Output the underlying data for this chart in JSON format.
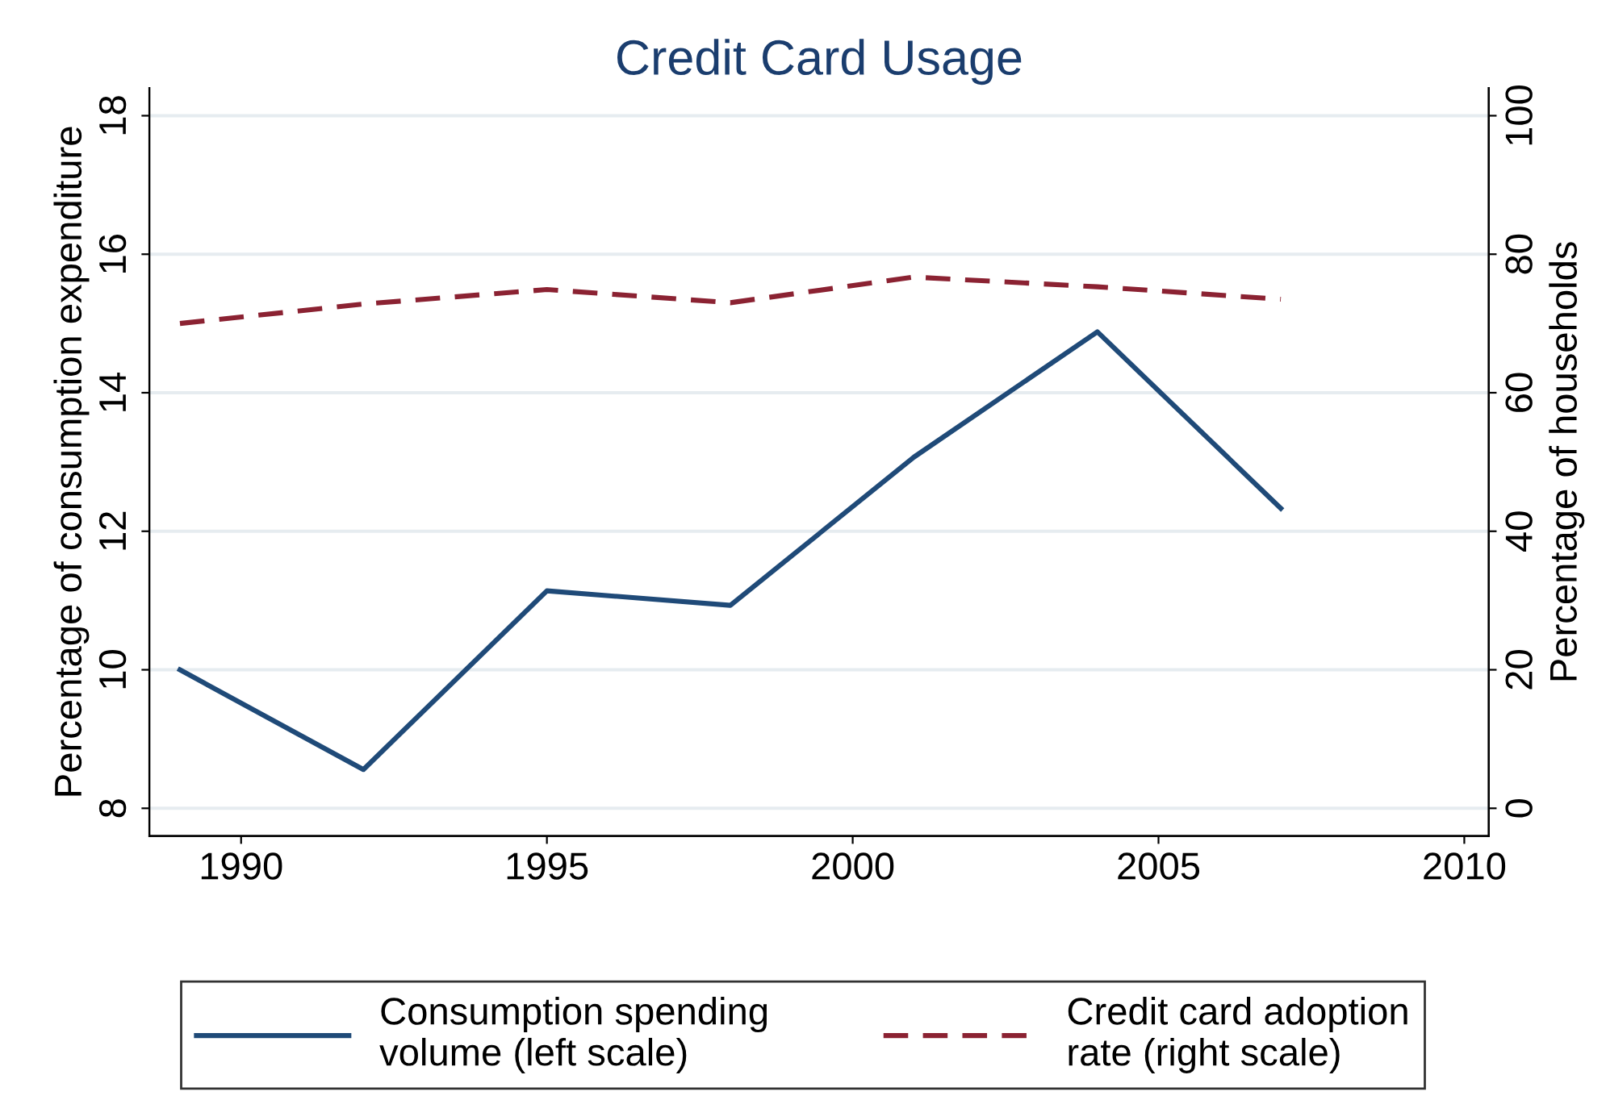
{
  "chart_data": {
    "type": "line",
    "title": "Credit Card Usage",
    "ylabel": "Percentage of consumption expenditure",
    "y2label": "Percentage of households",
    "x": [
      1989,
      1992,
      1995,
      1998,
      2001,
      2004,
      2007
    ],
    "series": [
      {
        "name": "Consumption spending\nvolume (left scale)",
        "color": "#1f4a78",
        "values": [
          10.0,
          8.56,
          11.14,
          10.93,
          13.07,
          14.88,
          12.33
        ],
        "line_style": "solid"
      },
      {
        "name": "Credit card adoption\nrate (right scale)",
        "color": "#8b2232",
        "values": [
          70.0,
          72.8,
          74.9,
          73.0,
          76.7,
          75.3,
          73.5
        ],
        "axis": "y2",
        "line_style": "dashed"
      }
    ],
    "xlim": [
      1988.5,
      2010.4
    ],
    "xticks": [
      1990,
      1995,
      2000,
      2005,
      2010
    ],
    "ylim": [
      7.6,
      18.4
    ],
    "yticks": [
      8,
      10,
      12,
      14,
      16,
      18
    ],
    "y2lim": [
      -4,
      104
    ],
    "y2ticks": [
      0,
      20,
      40,
      60,
      80,
      100
    ],
    "grid": "y",
    "legend": "bottom",
    "marker": "none"
  }
}
